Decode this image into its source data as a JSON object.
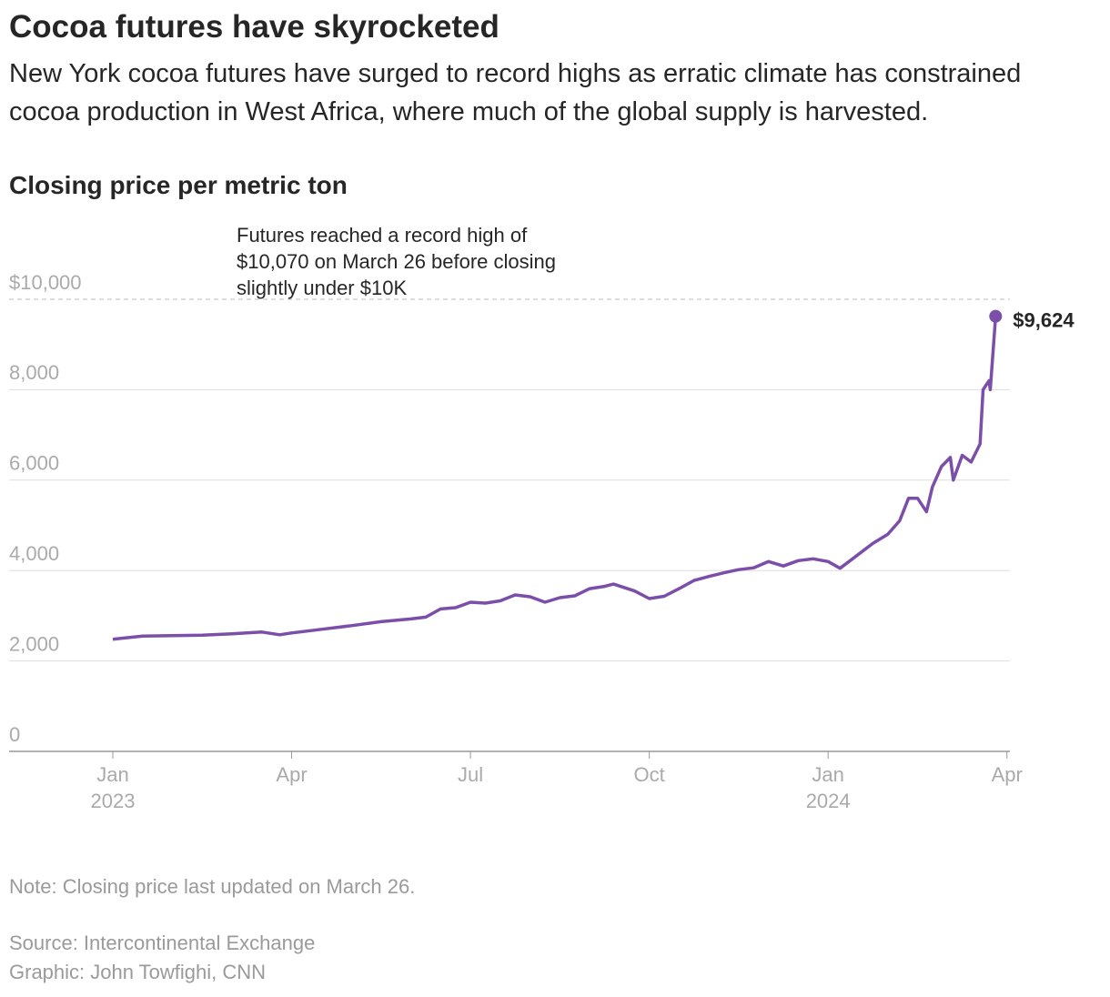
{
  "chart_data": {
    "type": "line",
    "title": "Cocoa futures have skyrocketed",
    "subtitle": "New York cocoa futures have surged to record highs as erratic climate has constrained cocoa production in West Africa, where much of the global supply is harvested.",
    "y_axis_label": "Closing price per metric ton",
    "annotation": [
      "Futures reached a record high of",
      "$10,070 on March 26 before closing",
      "slightly under $10K"
    ],
    "note": "Note: Closing price last updated on March 26.",
    "source": "Source: Intercontinental Exchange",
    "credit": "Graphic: John Towfighi, CNN",
    "xlim": [
      -1.74,
      15.05
    ],
    "xticks": [
      {
        "value": 0,
        "label": "Jan"
      },
      {
        "value": 3,
        "label": "Apr"
      },
      {
        "value": 6,
        "label": "Jul"
      },
      {
        "value": 9,
        "label": "Oct"
      },
      {
        "value": 12,
        "label": "Jan"
      },
      {
        "value": 15,
        "label": "Apr"
      }
    ],
    "xtick_years": [
      {
        "value": 0,
        "label": "2023"
      },
      {
        "value": 12,
        "label": "2024"
      }
    ],
    "ylim": [
      0,
      10000
    ],
    "yticks": [
      0,
      {
        "value": 2000,
        "label": "2,000"
      },
      {
        "value": 4000,
        "label": "4,000"
      },
      {
        "value": 6000,
        "label": "6,000"
      },
      {
        "value": 8000,
        "label": "8,000"
      },
      {
        "value": 10000,
        "label": "$10,000"
      }
    ],
    "grid": true,
    "series": [
      {
        "name": "Closing price",
        "color": "#7b4ea9",
        "x": [
          0,
          0.5,
          1,
          1.5,
          2,
          2.5,
          2.8,
          3,
          3.5,
          4,
          4.5,
          5,
          5.25,
          5.5,
          5.75,
          6,
          6.25,
          6.5,
          6.75,
          7,
          7.25,
          7.5,
          7.75,
          8,
          8.25,
          8.4,
          8.75,
          9,
          9.25,
          9.5,
          9.75,
          10,
          10.25,
          10.5,
          10.75,
          11,
          11.25,
          11.5,
          11.75,
          12,
          12.2,
          12.4,
          12.6,
          12.75,
          13,
          13.2,
          13.35,
          13.5,
          13.65,
          13.75,
          13.9,
          14.05,
          14.1,
          14.25,
          14.4,
          14.55,
          14.6,
          14.7,
          14.72,
          14.81
        ],
        "values": [
          2480,
          2550,
          2560,
          2570,
          2600,
          2640,
          2580,
          2620,
          2700,
          2780,
          2870,
          2930,
          2970,
          3150,
          3180,
          3300,
          3280,
          3330,
          3460,
          3420,
          3300,
          3400,
          3440,
          3600,
          3650,
          3700,
          3550,
          3380,
          3430,
          3600,
          3780,
          3870,
          3950,
          4020,
          4060,
          4200,
          4100,
          4220,
          4260,
          4200,
          4050,
          4250,
          4450,
          4600,
          4800,
          5100,
          5600,
          5600,
          5300,
          5850,
          6300,
          6500,
          6000,
          6550,
          6400,
          6800,
          8000,
          8200,
          8000,
          9624
        ],
        "value_labels": [
          null,
          null,
          null,
          null,
          null,
          null,
          null,
          null,
          null,
          null,
          null,
          null,
          null,
          null,
          null,
          null,
          null,
          null,
          null,
          null,
          null,
          null,
          null,
          null,
          null,
          null,
          null,
          null,
          null,
          null,
          null,
          null,
          null,
          null,
          null,
          null,
          null,
          null,
          null,
          null,
          null,
          null,
          null,
          null,
          null,
          null,
          null,
          null,
          null,
          null,
          null,
          null,
          null,
          null,
          null,
          null,
          null,
          null,
          null,
          "$9,624"
        ]
      }
    ]
  }
}
